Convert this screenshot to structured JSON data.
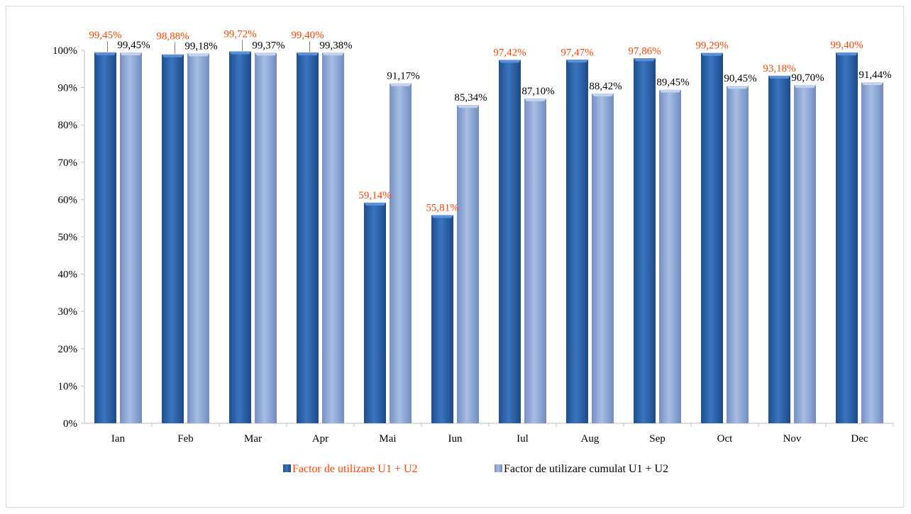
{
  "chart_data": {
    "type": "bar",
    "title": "",
    "xlabel": "",
    "ylabel": "",
    "ylim": [
      0,
      100
    ],
    "y_ticks": [
      "0%",
      "10%",
      "20%",
      "30%",
      "40%",
      "50%",
      "60%",
      "70%",
      "80%",
      "90%",
      "100%"
    ],
    "grid": false,
    "legend_position": "bottom",
    "categories": [
      "Ian",
      "Feb",
      "Mar",
      "Apr",
      "Mai",
      "Iun",
      "Iul",
      "Aug",
      "Sep",
      "Oct",
      "Nov",
      "Dec"
    ],
    "series": [
      {
        "name": "Factor de utilizare U1 + U2",
        "color": "#2e63a8",
        "label_color": "#ff4500",
        "values": [
          99.45,
          98.88,
          99.72,
          99.4,
          59.14,
          55.81,
          97.42,
          97.47,
          97.86,
          99.29,
          93.18,
          99.4
        ],
        "labels": [
          "99,45%",
          "98,88%",
          "99,72%",
          "99,40%",
          "59,14%",
          "55,81%",
          "97,42%",
          "97,47%",
          "97,86%",
          "99,29%",
          "93,18%",
          "99,40%"
        ]
      },
      {
        "name": "Factor de utilizare cumulat U1 + U2",
        "color": "#8ea8d6",
        "label_color": "#000000",
        "values": [
          99.45,
          99.18,
          99.37,
          99.38,
          91.17,
          85.34,
          87.1,
          88.42,
          89.45,
          90.45,
          90.7,
          91.44
        ],
        "labels": [
          "99,45%",
          "99,18%",
          "99,37%",
          "99,38%",
          "91,17%",
          "85,34%",
          "87,10%",
          "88,42%",
          "89,45%",
          "90,45%",
          "90,70%",
          "91,44%"
        ]
      }
    ]
  }
}
